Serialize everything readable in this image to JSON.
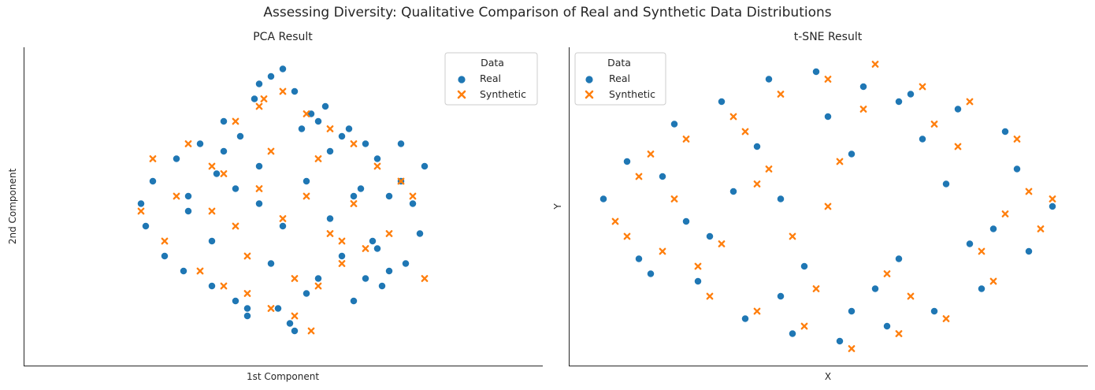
{
  "figure": {
    "title": "Assessing Diversity: Qualitative Comparison of Real and Synthetic Data Distributions"
  },
  "colors": {
    "real": "#1f77b4",
    "synthetic": "#ff7f0e"
  },
  "chart_data": [
    {
      "type": "scatter",
      "title": "PCA Result",
      "xlabel": "1st Component",
      "ylabel": "2nd Component",
      "xticks": [],
      "yticks": [],
      "grid": false,
      "legend": {
        "title": "Data",
        "placement": "top-right",
        "entries": [
          "Real",
          "Synthetic"
        ]
      },
      "series": [
        {
          "name": "Real",
          "marker": "circle",
          "x": [
            -0.6,
            -0.58,
            -0.55,
            -0.5,
            -0.45,
            -0.42,
            -0.4,
            -0.35,
            -0.3,
            -0.28,
            -0.25,
            -0.2,
            -0.18,
            -0.15,
            -0.12,
            -0.1,
            -0.05,
            -0.02,
            0.0,
            0.03,
            0.05,
            0.08,
            0.1,
            0.12,
            0.15,
            0.18,
            0.2,
            0.25,
            0.28,
            0.3,
            0.33,
            0.35,
            0.38,
            0.4,
            0.42,
            0.45,
            0.5,
            0.52,
            0.55,
            0.58,
            0.6,
            -0.4,
            -0.3,
            -0.2,
            -0.1,
            0.0,
            0.1,
            0.2,
            0.3,
            0.4,
            -0.1,
            0.05,
            0.15,
            -0.05,
            0.25,
            0.35,
            -0.25,
            -0.15,
            0.45,
            0.5
          ],
          "y": [
            0.05,
            -0.1,
            0.2,
            -0.3,
            0.35,
            -0.4,
            0.1,
            0.45,
            -0.5,
            0.25,
            0.6,
            -0.6,
            0.5,
            -0.7,
            0.75,
            0.3,
            0.9,
            -0.65,
            0.95,
            -0.75,
            0.8,
            0.55,
            -0.55,
            0.65,
            -0.45,
            0.7,
            0.4,
            -0.3,
            0.55,
            -0.6,
            0.15,
            0.45,
            -0.2,
            0.35,
            -0.5,
            0.1,
            0.2,
            -0.35,
            0.05,
            -0.15,
            0.3,
            0.0,
            -0.2,
            0.15,
            0.05,
            -0.1,
            0.2,
            -0.05,
            0.1,
            -0.25,
            0.85,
            -0.8,
            0.6,
            -0.35,
            0.5,
            -0.45,
            0.4,
            -0.65,
            -0.4,
            0.45
          ]
        },
        {
          "name": "Synthetic",
          "marker": "x",
          "x": [
            -0.55,
            -0.5,
            -0.45,
            -0.4,
            -0.35,
            -0.3,
            -0.25,
            -0.2,
            -0.15,
            -0.1,
            -0.05,
            0.0,
            0.05,
            0.1,
            0.15,
            0.2,
            0.25,
            0.3,
            0.35,
            0.4,
            0.45,
            0.5,
            0.55,
            -0.3,
            -0.2,
            -0.1,
            0.0,
            0.1,
            0.2,
            0.3,
            -0.25,
            -0.15,
            -0.05,
            0.05,
            0.15,
            0.25,
            0.6,
            -0.6,
            0.12,
            -0.08
          ],
          "y": [
            0.35,
            -0.2,
            0.1,
            0.45,
            -0.4,
            0.3,
            -0.5,
            0.6,
            -0.55,
            0.7,
            -0.65,
            0.8,
            -0.7,
            0.65,
            -0.5,
            0.55,
            -0.35,
            0.45,
            -0.25,
            0.3,
            -0.15,
            0.2,
            0.1,
            0.0,
            -0.1,
            0.15,
            -0.05,
            0.1,
            -0.15,
            0.05,
            0.25,
            -0.3,
            0.4,
            -0.45,
            0.35,
            -0.2,
            -0.45,
            0.0,
            -0.8,
            0.75
          ]
        }
      ]
    },
    {
      "type": "scatter",
      "title": "t-SNE Result",
      "xlabel": "X",
      "ylabel": "Y",
      "xticks": [],
      "yticks": [],
      "grid": false,
      "legend": {
        "title": "Data",
        "placement": "top-left",
        "entries": [
          "Real",
          "Synthetic"
        ]
      },
      "series": [
        {
          "name": "Real",
          "marker": "circle",
          "x": [
            -0.95,
            -0.85,
            -0.75,
            -0.65,
            -0.55,
            -0.45,
            -0.35,
            -0.25,
            -0.15,
            -0.05,
            0.05,
            0.15,
            0.25,
            0.35,
            0.45,
            0.55,
            0.65,
            0.75,
            0.85,
            0.95,
            -0.7,
            -0.5,
            -0.3,
            -0.1,
            0.1,
            0.3,
            0.5,
            0.7,
            -0.6,
            -0.4,
            -0.2,
            0.0,
            0.2,
            0.4,
            0.6,
            -0.8,
            0.8,
            -0.2,
            0.1,
            0.3
          ],
          "y": [
            0.05,
            0.3,
            -0.45,
            0.55,
            -0.5,
            0.7,
            -0.75,
            0.85,
            -0.85,
            0.9,
            -0.9,
            0.8,
            -0.8,
            0.75,
            -0.7,
            0.65,
            -0.55,
            0.5,
            -0.3,
            0.0,
            0.2,
            -0.2,
            0.4,
            -0.4,
            0.35,
            -0.35,
            0.15,
            -0.15,
            -0.1,
            0.1,
            -0.6,
            0.6,
            -0.55,
            0.45,
            -0.25,
            -0.35,
            0.25,
            0.05,
            -0.7,
            0.7
          ]
        },
        {
          "name": "Synthetic",
          "marker": "x",
          "x": [
            -0.9,
            -0.8,
            -0.7,
            -0.6,
            -0.5,
            -0.4,
            -0.3,
            -0.2,
            -0.1,
            0.0,
            0.1,
            0.2,
            0.3,
            0.4,
            0.5,
            0.6,
            0.7,
            0.8,
            0.9,
            -0.75,
            -0.55,
            -0.35,
            -0.15,
            0.05,
            0.25,
            0.45,
            0.65,
            0.85,
            -0.65,
            -0.45,
            -0.25,
            -0.05,
            0.15,
            0.35,
            0.55,
            0.75,
            -0.85,
            0.95,
            0.0,
            -0.3
          ],
          "y": [
            -0.1,
            0.2,
            -0.3,
            0.45,
            -0.6,
            0.6,
            -0.7,
            0.75,
            -0.8,
            0.85,
            -0.95,
            0.95,
            -0.85,
            0.8,
            -0.75,
            0.7,
            -0.5,
            0.45,
            -0.15,
            0.35,
            -0.4,
            0.5,
            -0.2,
            0.3,
            -0.45,
            0.55,
            -0.3,
            0.1,
            0.05,
            -0.25,
            0.25,
            -0.55,
            0.65,
            -0.6,
            0.4,
            -0.05,
            -0.2,
            0.05,
            0.0,
            0.15
          ]
        }
      ]
    }
  ]
}
